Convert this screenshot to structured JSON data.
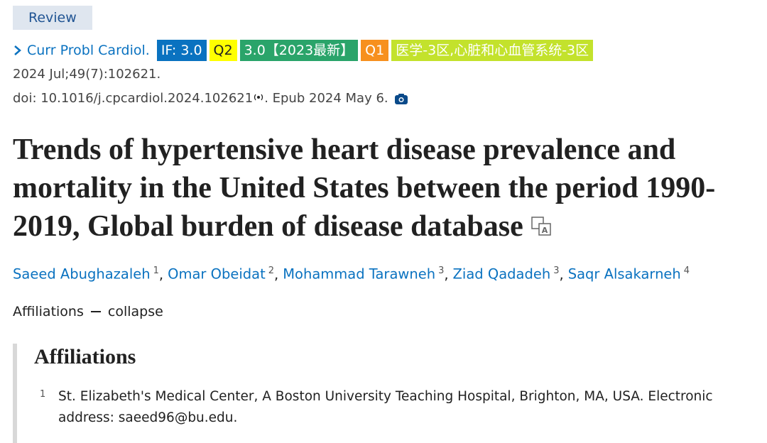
{
  "article_type": "Review",
  "journal": {
    "name": "Curr Probl Cardiol.",
    "badges": [
      {
        "text": "IF: 3.0",
        "color": "#0a72c0"
      },
      {
        "text": "Q2",
        "color": "#ffff00"
      },
      {
        "text": "3.0【2023最新】",
        "color": "#2aa46a"
      },
      {
        "text": "Q1",
        "color": "#f7901e"
      },
      {
        "text": "医学-3区,心脏和心血管系统-3区",
        "color": "#c3e22c"
      }
    ]
  },
  "citation": "2024 Jul;49(7):102621.",
  "doi": "doi: 10.1016/j.cpcardiol.2024.102621",
  "epub": ". Epub 2024 May 6.",
  "title": "Trends of hypertensive heart disease prevalence and mortality in the United States between the period 1990-2019, Global burden of disease database",
  "author_separator": ",",
  "authors": [
    {
      "name": "Saeed Abughazaleh",
      "affiliation": 1
    },
    {
      "name": "Omar Obeidat",
      "affiliation": 2
    },
    {
      "name": "Mohammad Tarawneh",
      "affiliation": 3
    },
    {
      "name": "Ziad Qadadeh",
      "affiliation": 3
    },
    {
      "name": "Saqr Alsakarneh",
      "affiliation": 4
    }
  ],
  "affiliations_toggle": {
    "label": "Affiliations",
    "action": "collapse"
  },
  "affiliations": {
    "heading": "Affiliations",
    "items": [
      {
        "number": 1,
        "text": "St. Elizabeth's Medical Center, A Boston University Teaching Hospital, Brighton, MA, USA. Electronic address: saeed96@bu.edu."
      }
    ]
  }
}
